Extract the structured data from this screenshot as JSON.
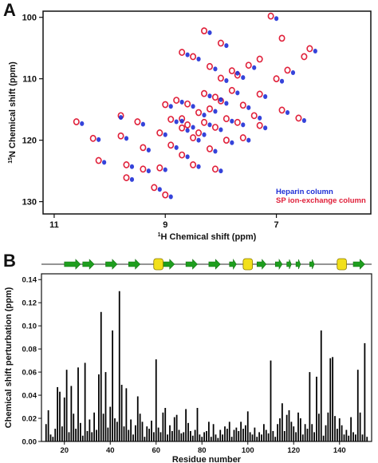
{
  "panels": {
    "a_letter": "A",
    "b_letter": "B"
  },
  "chart_data": [
    {
      "type": "scatter",
      "title": "",
      "xlabel_sup": "1",
      "xlabel": "H  Chemical shift (ppm)",
      "ylabel_sup": "15",
      "ylabel": "N Chemical shift (ppm)",
      "xlim": [
        11.2,
        5.3
      ],
      "ylim": [
        99,
        132
      ],
      "x_ticks": [
        11,
        9,
        7
      ],
      "y_ticks": [
        100,
        110,
        120,
        130
      ],
      "legend_position": "bottom-right",
      "colors": {
        "heparin": "#1f2fd6",
        "sp": "#e0203a"
      },
      "series": [
        {
          "name": "Heparin column",
          "points": [
            [
              10.5,
              117.3
            ],
            [
              10.2,
              119.9
            ],
            [
              10.1,
              123.6
            ],
            [
              9.8,
              116.3
            ],
            [
              9.7,
              119.7
            ],
            [
              9.6,
              124.3
            ],
            [
              9.6,
              126.4
            ],
            [
              9.4,
              117.4
            ],
            [
              9.3,
              121.6
            ],
            [
              9.3,
              125.0
            ],
            [
              9.1,
              128.0
            ],
            [
              9.0,
              119.1
            ],
            [
              9.0,
              124.8
            ],
            [
              8.9,
              114.5
            ],
            [
              8.9,
              129.2
            ],
            [
              8.8,
              117.0
            ],
            [
              8.8,
              121.2
            ],
            [
              8.7,
              113.8
            ],
            [
              8.7,
              116.9
            ],
            [
              8.6,
              106.1
            ],
            [
              8.6,
              118.4
            ],
            [
              8.6,
              122.7
            ],
            [
              8.5,
              114.5
            ],
            [
              8.5,
              117.9
            ],
            [
              8.4,
              106.8
            ],
            [
              8.4,
              120.0
            ],
            [
              8.4,
              124.3
            ],
            [
              8.3,
              115.9
            ],
            [
              8.3,
              119.1
            ],
            [
              8.2,
              102.5
            ],
            [
              8.2,
              112.8
            ],
            [
              8.2,
              117.5
            ],
            [
              8.1,
              108.4
            ],
            [
              8.1,
              115.3
            ],
            [
              8.1,
              121.8
            ],
            [
              8.0,
              113.4
            ],
            [
              8.0,
              118.3
            ],
            [
              8.0,
              125.0
            ],
            [
              7.9,
              104.6
            ],
            [
              7.9,
              110.3
            ],
            [
              7.9,
              114.0
            ],
            [
              7.8,
              116.9
            ],
            [
              7.8,
              120.4
            ],
            [
              7.7,
              109.1
            ],
            [
              7.7,
              112.3
            ],
            [
              7.6,
              109.8
            ],
            [
              7.6,
              117.5
            ],
            [
              7.5,
              114.7
            ],
            [
              7.5,
              120.0
            ],
            [
              7.4,
              108.2
            ],
            [
              7.3,
              116.4
            ],
            [
              7.2,
              112.9
            ],
            [
              7.2,
              118.0
            ],
            [
              7.0,
              100.2
            ],
            [
              6.9,
              110.4
            ],
            [
              6.8,
              115.5
            ],
            [
              6.7,
              109.0
            ],
            [
              6.5,
              116.8
            ],
            [
              6.3,
              105.5
            ]
          ]
        },
        {
          "name": "SP ion-exchange column",
          "points": [
            [
              10.6,
              117.0
            ],
            [
              10.3,
              119.7
            ],
            [
              10.2,
              123.3
            ],
            [
              9.8,
              116.0
            ],
            [
              9.8,
              119.3
            ],
            [
              9.7,
              124.0
            ],
            [
              9.7,
              126.1
            ],
            [
              9.5,
              117.0
            ],
            [
              9.4,
              121.2
            ],
            [
              9.4,
              124.7
            ],
            [
              9.2,
              127.7
            ],
            [
              9.1,
              118.8
            ],
            [
              9.1,
              124.5
            ],
            [
              9.0,
              114.2
            ],
            [
              9.0,
              128.9
            ],
            [
              8.9,
              116.6
            ],
            [
              8.9,
              120.8
            ],
            [
              8.8,
              113.5
            ],
            [
              8.7,
              116.5
            ],
            [
              8.7,
              105.7
            ],
            [
              8.7,
              118.0
            ],
            [
              8.7,
              122.4
            ],
            [
              8.6,
              114.1
            ],
            [
              8.6,
              117.5
            ],
            [
              8.5,
              106.4
            ],
            [
              8.5,
              119.6
            ],
            [
              8.5,
              124.0
            ],
            [
              8.4,
              115.5
            ],
            [
              8.4,
              118.8
            ],
            [
              8.3,
              102.2
            ],
            [
              8.3,
              112.4
            ],
            [
              8.3,
              117.1
            ],
            [
              8.2,
              108.0
            ],
            [
              8.2,
              114.9
            ],
            [
              8.2,
              121.4
            ],
            [
              8.1,
              113.0
            ],
            [
              8.1,
              117.9
            ],
            [
              8.1,
              124.7
            ],
            [
              8.0,
              104.2
            ],
            [
              8.0,
              109.9
            ],
            [
              8.0,
              113.6
            ],
            [
              7.9,
              116.5
            ],
            [
              7.9,
              120.0
            ],
            [
              7.8,
              108.7
            ],
            [
              7.8,
              111.9
            ],
            [
              7.7,
              109.4
            ],
            [
              7.7,
              117.1
            ],
            [
              7.6,
              114.3
            ],
            [
              7.6,
              119.6
            ],
            [
              7.5,
              107.8
            ],
            [
              7.4,
              116.0
            ],
            [
              7.3,
              112.5
            ],
            [
              7.3,
              117.6
            ],
            [
              7.1,
              99.8
            ],
            [
              7.0,
              110.0
            ],
            [
              6.9,
              115.1
            ],
            [
              6.8,
              108.6
            ],
            [
              6.6,
              116.4
            ],
            [
              6.4,
              105.1
            ],
            [
              6.9,
              103.4
            ],
            [
              6.5,
              106.4
            ],
            [
              7.3,
              106.8
            ]
          ]
        }
      ]
    },
    {
      "type": "bar",
      "title": "",
      "xlabel": "Residue number",
      "ylabel": "Chemical shift perturbation (ppm)",
      "xlim": [
        10,
        154
      ],
      "ylim": [
        0,
        0.145
      ],
      "x_ticks": [
        20,
        40,
        60,
        80,
        100,
        120,
        140
      ],
      "y_ticks": [
        0.0,
        0.02,
        0.04,
        0.06,
        0.08,
        0.1,
        0.12,
        0.14
      ],
      "bar_color": "#000000",
      "secondary_structure": {
        "strand_color": "#1e9e1e",
        "helix_color": "#f2e01a",
        "strands": [
          [
            20,
            27
          ],
          [
            28,
            33
          ],
          [
            38,
            43
          ],
          [
            48,
            53
          ],
          [
            63,
            68
          ],
          [
            73,
            78
          ],
          [
            83,
            88
          ],
          [
            92,
            95
          ],
          [
            104,
            108
          ],
          [
            112,
            115
          ],
          [
            117,
            119
          ],
          [
            121,
            123
          ],
          [
            127,
            129
          ],
          [
            146,
            151
          ]
        ],
        "helices": [
          [
            60,
            62
          ],
          [
            99,
            101
          ],
          [
            140,
            142
          ]
        ]
      },
      "residues": [
        12,
        13,
        14,
        15,
        16,
        17,
        18,
        19,
        20,
        21,
        22,
        23,
        24,
        25,
        26,
        27,
        28,
        29,
        30,
        31,
        32,
        33,
        34,
        35,
        36,
        37,
        38,
        39,
        40,
        41,
        42,
        43,
        44,
        45,
        46,
        47,
        48,
        49,
        50,
        51,
        52,
        53,
        54,
        55,
        56,
        57,
        58,
        59,
        60,
        61,
        62,
        63,
        64,
        65,
        66,
        67,
        68,
        69,
        70,
        71,
        72,
        73,
        74,
        75,
        76,
        77,
        78,
        79,
        80,
        81,
        82,
        83,
        84,
        85,
        86,
        87,
        88,
        89,
        90,
        91,
        92,
        93,
        94,
        95,
        96,
        97,
        98,
        99,
        100,
        101,
        102,
        103,
        104,
        105,
        106,
        107,
        108,
        109,
        110,
        111,
        112,
        113,
        114,
        115,
        116,
        117,
        118,
        119,
        120,
        121,
        122,
        123,
        124,
        125,
        126,
        127,
        128,
        129,
        130,
        131,
        132,
        133,
        134,
        135,
        136,
        137,
        138,
        139,
        140,
        141,
        142,
        143,
        144,
        145,
        146,
        147,
        148,
        149,
        150,
        151,
        152
      ],
      "values": [
        0.015,
        0.027,
        0.006,
        0.004,
        0.011,
        0.047,
        0.043,
        0.013,
        0.038,
        0.062,
        0.008,
        0.048,
        0.024,
        0.011,
        0.064,
        0.016,
        0.005,
        0.068,
        0.009,
        0.019,
        0.008,
        0.025,
        0.01,
        0.058,
        0.112,
        0.024,
        0.06,
        0.012,
        0.03,
        0.096,
        0.02,
        0.017,
        0.13,
        0.049,
        0.013,
        0.046,
        0.01,
        0.019,
        0.006,
        0.014,
        0.039,
        0.024,
        0.017,
        0.004,
        0.013,
        0.011,
        0.018,
        0.008,
        0.071,
        0.012,
        0.008,
        0.025,
        0.029,
        0.006,
        0.014,
        0.009,
        0.021,
        0.023,
        0.01,
        0.007,
        0.008,
        0.028,
        0.016,
        0.009,
        0.005,
        0.01,
        0.029,
        0.006,
        0.004,
        0.008,
        0.009,
        0.017,
        0.004,
        0.015,
        0.006,
        0.003,
        0.01,
        0.006,
        0.013,
        0.011,
        0.017,
        0.004,
        0.01,
        0.012,
        0.009,
        0.017,
        0.011,
        0.014,
        0.026,
        0.008,
        0.006,
        0.012,
        0.004,
        0.008,
        0.006,
        0.015,
        0.01,
        0.007,
        0.07,
        0.009,
        0.004,
        0.015,
        0.02,
        0.033,
        0.009,
        0.023,
        0.027,
        0.017,
        0.013,
        0.008,
        0.025,
        0.02,
        0.006,
        0.015,
        0.011,
        0.06,
        0.015,
        0.008,
        0.056,
        0.024,
        0.096,
        0.005,
        0.014,
        0.025,
        0.072,
        0.073,
        0.022,
        0.011,
        0.02,
        0.014,
        0.006,
        0.01,
        0.005,
        0.021,
        0.008,
        0.006,
        0.062,
        0.025,
        0.006,
        0.085,
        0.004
      ]
    }
  ],
  "legend_a": {
    "heparin": "Heparin column",
    "sp": "SP ion-exchange column"
  }
}
